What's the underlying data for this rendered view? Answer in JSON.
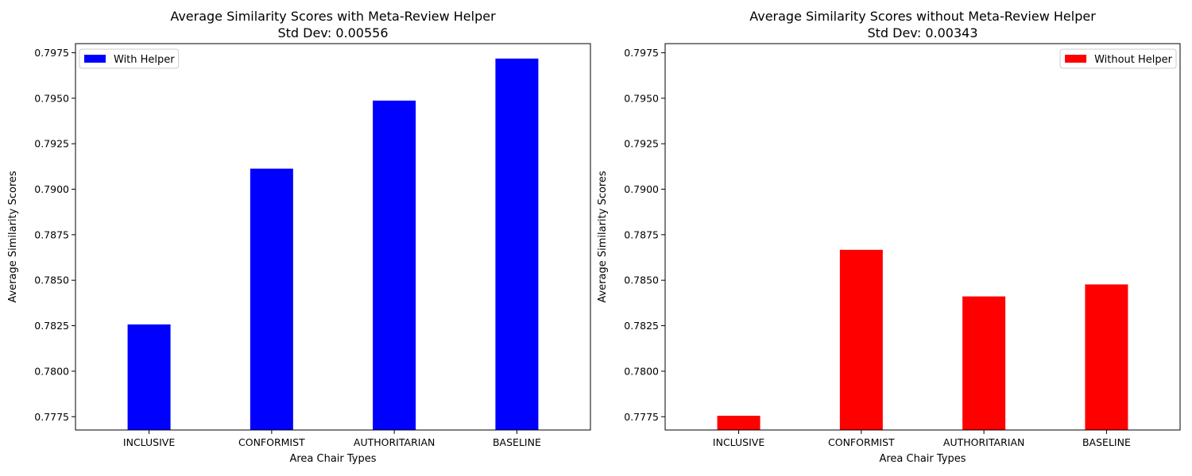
{
  "chart_data": [
    {
      "type": "bar",
      "title": "Average Similarity Scores with Meta-Review Helper",
      "subtitle": "Std Dev: 0.00556",
      "xlabel": "Area Chair Types",
      "ylabel": "Average Similarity Scores",
      "categories": [
        "INCLUSIVE",
        "CONFORMIST",
        "AUTHORITARIAN",
        "BASELINE"
      ],
      "series": [
        {
          "name": "With Helper",
          "color": "#0000ff",
          "values": [
            0.78257,
            0.79113,
            0.79487,
            0.79718
          ]
        }
      ],
      "ylim": [
        0.77677,
        0.798
      ],
      "yticks": [
        "0.7775",
        "0.7800",
        "0.7825",
        "0.7850",
        "0.7875",
        "0.7900",
        "0.7925",
        "0.7950",
        "0.7975"
      ],
      "legend": "top-left",
      "grid": false
    },
    {
      "type": "bar",
      "title": "Average Similarity Scores without Meta-Review Helper",
      "subtitle": "Std Dev: 0.00343",
      "xlabel": "Area Chair Types",
      "ylabel": "Average Similarity Scores",
      "categories": [
        "INCLUSIVE",
        "CONFORMIST",
        "AUTHORITARIAN",
        "BASELINE"
      ],
      "series": [
        {
          "name": "Without Helper",
          "color": "#ff0000",
          "values": [
            0.77755,
            0.78667,
            0.78411,
            0.78477
          ]
        }
      ],
      "ylim": [
        0.77677,
        0.798
      ],
      "yticks": [
        "0.7775",
        "0.7800",
        "0.7825",
        "0.7850",
        "0.7875",
        "0.7900",
        "0.7925",
        "0.7950",
        "0.7975"
      ],
      "legend": "top-right",
      "grid": false
    }
  ]
}
